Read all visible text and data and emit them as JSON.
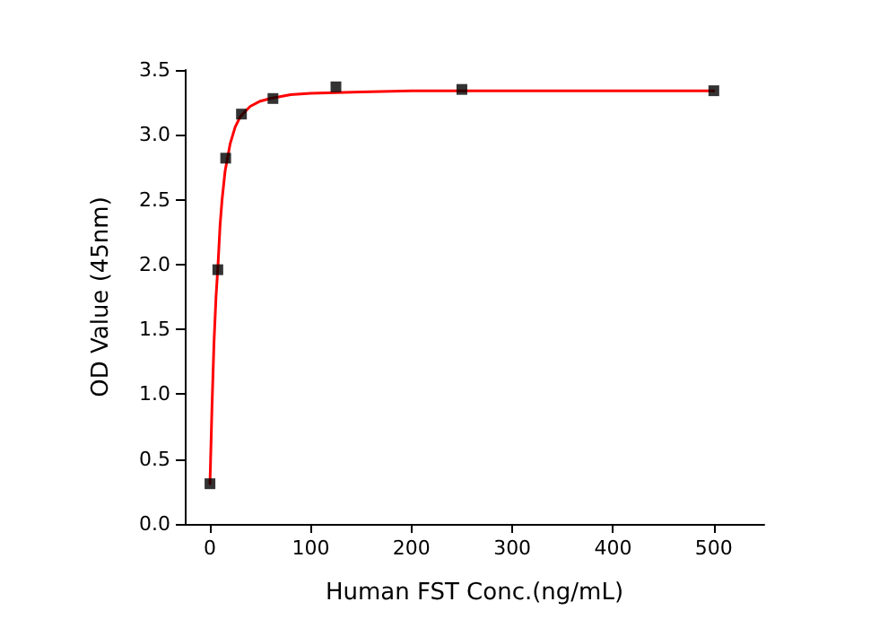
{
  "chart_data": {
    "type": "scatter",
    "xlabel": "Human FST Conc.(ng/mL)",
    "ylabel": "OD Value (45nm)",
    "xlim": [
      -25,
      550
    ],
    "xticks": [
      0,
      100,
      200,
      300,
      400,
      500
    ],
    "ylim": [
      0,
      3.5
    ],
    "yticks": [
      {
        "value": 0,
        "label": "0.0"
      },
      {
        "value": 0.5,
        "label": "0.5"
      },
      {
        "value": 1,
        "label": "1.0"
      },
      {
        "value": 1.5,
        "label": "1.5"
      },
      {
        "value": 2,
        "label": "2.0"
      },
      {
        "value": 2.5,
        "label": "2.5"
      },
      {
        "value": 3,
        "label": "3.0"
      },
      {
        "value": 3.5,
        "label": "3.5"
      }
    ],
    "grid": false,
    "series": [
      {
        "type": "line",
        "color": "#ff0000",
        "marker": "none",
        "line_style": "solid",
        "x": [
          0,
          2,
          4,
          6,
          8,
          10,
          12,
          15,
          20,
          25,
          30,
          40,
          50,
          60,
          80,
          100,
          150,
          200,
          300,
          500
        ],
        "values": [
          0.31,
          0.9,
          1.4,
          1.75,
          2.0,
          2.3,
          2.5,
          2.72,
          2.93,
          3.06,
          3.14,
          3.22,
          3.26,
          3.28,
          3.31,
          3.32,
          3.33,
          3.34,
          3.34,
          3.34
        ]
      },
      {
        "color": "#000000",
        "marker": "square",
        "x": [
          0,
          7.8,
          15.6,
          31.25,
          62.5,
          125,
          250,
          500
        ],
        "values": [
          0.31,
          1.96,
          2.82,
          3.16,
          3.28,
          3.37,
          3.35,
          3.34
        ]
      }
    ]
  }
}
